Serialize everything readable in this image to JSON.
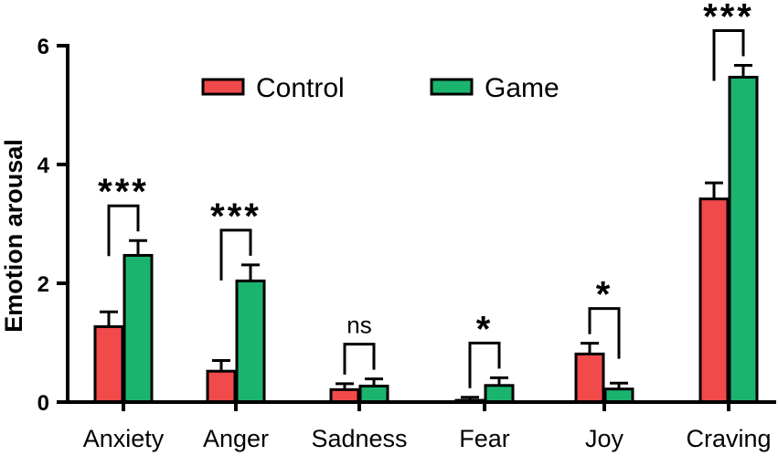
{
  "chart_data": {
    "type": "bar",
    "title": "",
    "xlabel": "",
    "ylabel": "Emotion arousal",
    "ylim": [
      0,
      6
    ],
    "yticks": [
      "0",
      "2",
      "4",
      "6"
    ],
    "categories": [
      "Anxiety",
      "Anger",
      "Sadness",
      "Fear",
      "Joy",
      "Craving"
    ],
    "series": [
      {
        "name": "Control",
        "color": "#f04a4a",
        "values": [
          1.27,
          0.52,
          0.21,
          0.03,
          0.81,
          3.42
        ],
        "errors": [
          0.25,
          0.18,
          0.1,
          0.05,
          0.18,
          0.27
        ]
      },
      {
        "name": "Game",
        "color": "#1bb46f",
        "values": [
          2.47,
          2.04,
          0.27,
          0.28,
          0.22,
          5.47
        ],
        "errors": [
          0.25,
          0.27,
          0.12,
          0.13,
          0.1,
          0.2
        ]
      }
    ],
    "significance": [
      "***",
      "***",
      "ns",
      "*",
      "*",
      "***"
    ],
    "legend_position": "top"
  }
}
